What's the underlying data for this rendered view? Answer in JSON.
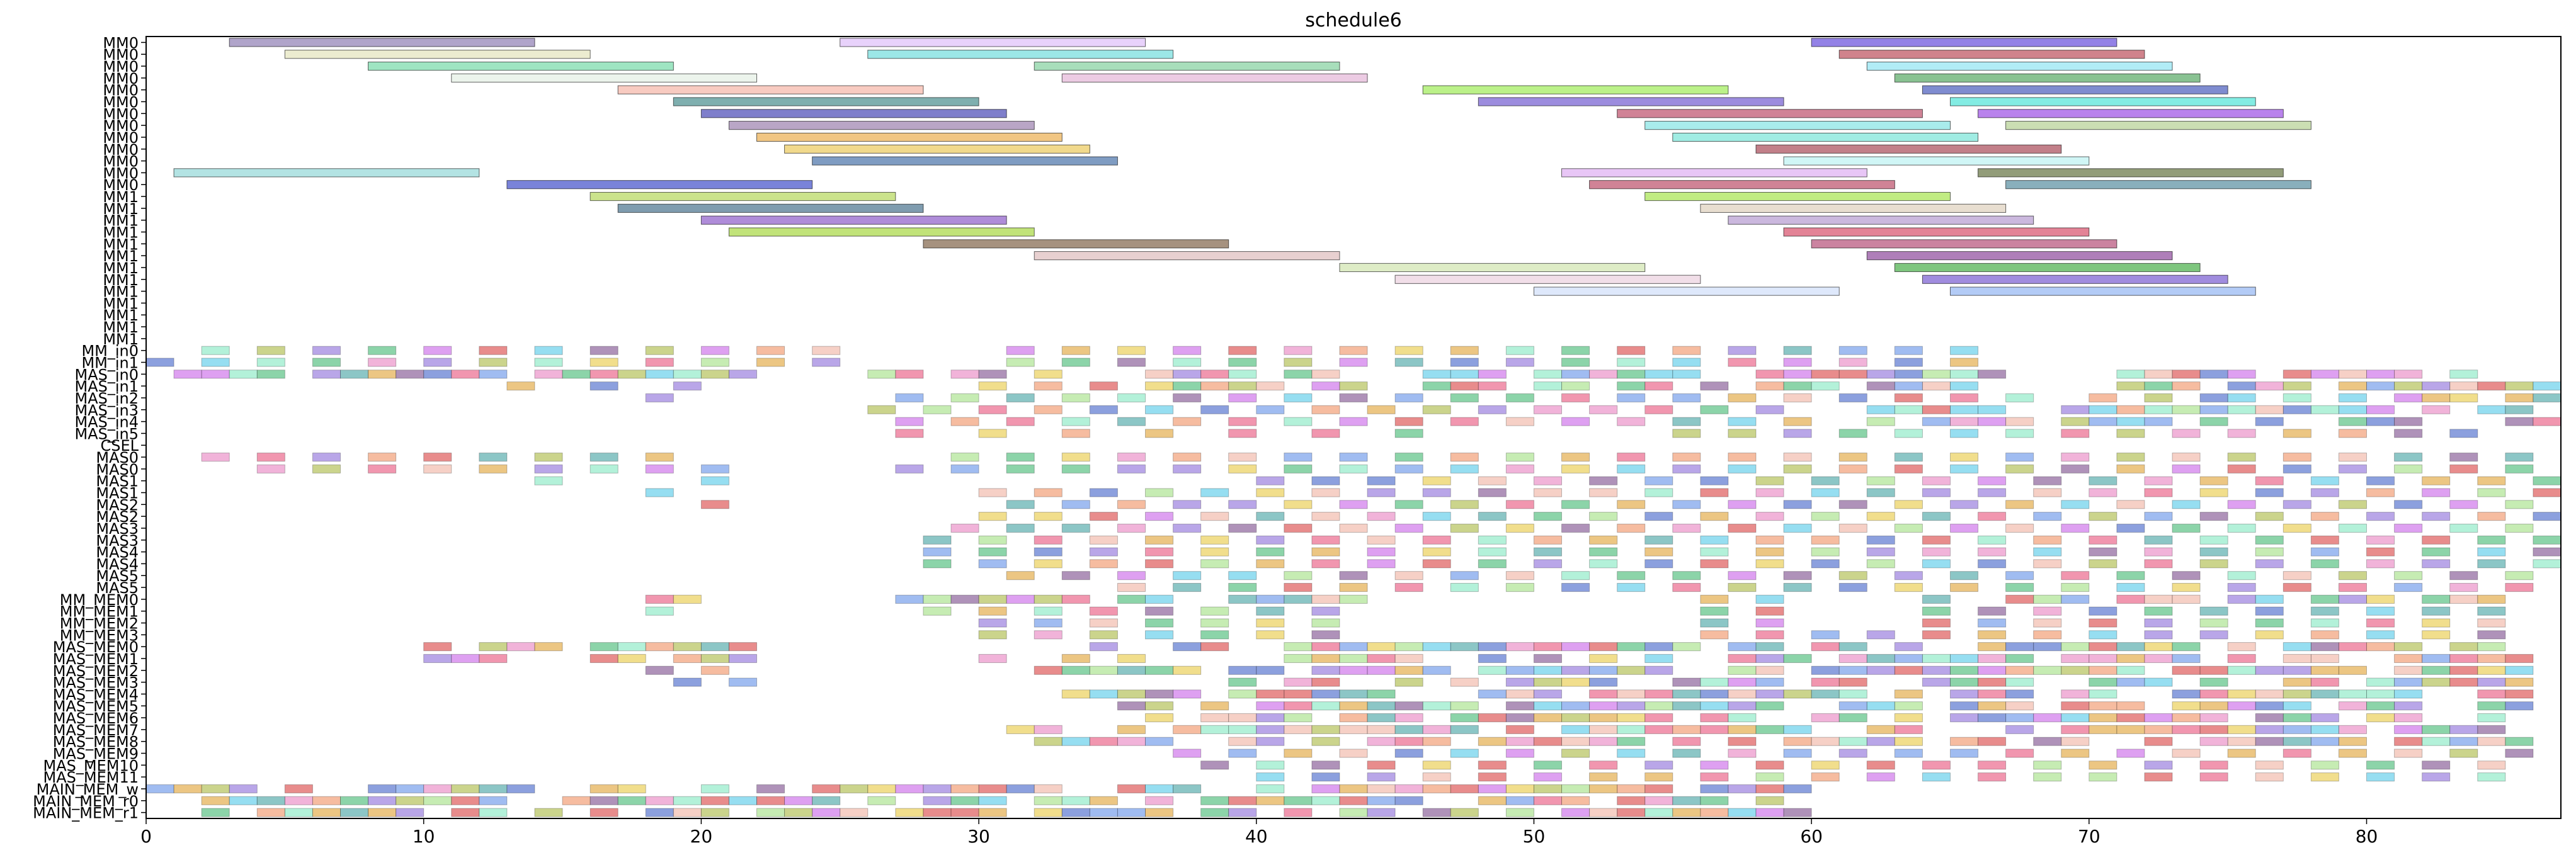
{
  "chart_data": {
    "type": "gantt",
    "title": "schedule6",
    "xlabel": "",
    "ylabel": "",
    "xlim": [
      0,
      87
    ],
    "x_ticks": [
      0,
      10,
      20,
      30,
      40,
      50,
      60,
      70,
      80
    ],
    "grid": false,
    "legend": "none",
    "rows": [
      "MM0",
      "MM0",
      "MM0",
      "MM0",
      "MM0",
      "MM0",
      "MM0",
      "MM0",
      "MM0",
      "MM0",
      "MM0",
      "MM0",
      "MM0",
      "MM1",
      "MM1",
      "MM1",
      "MM1",
      "MM1",
      "MM1",
      "MM1",
      "MM1",
      "MM1",
      "MM1",
      "MM1",
      "MM1",
      "MM1",
      "MM_in0",
      "MM_in1",
      "MAS_in0",
      "MAS_in1",
      "MAS_in2",
      "MAS_in3",
      "MAS_in4",
      "MAS_in5",
      "CSEL",
      "MAS0",
      "MAS0",
      "MAS1",
      "MAS1",
      "MAS2",
      "MAS2",
      "MAS3",
      "MAS3",
      "MAS4",
      "MAS4",
      "MAS5",
      "MAS5",
      "MM_MEM0",
      "MM_MEM1",
      "MM_MEM2",
      "MM_MEM3",
      "MAS_MEM0",
      "MAS_MEM1",
      "MAS_MEM2",
      "MAS_MEM3",
      "MAS_MEM4",
      "MAS_MEM5",
      "MAS_MEM6",
      "MAS_MEM7",
      "MAS_MEM8",
      "MAS_MEM9",
      "MAS_MEM10",
      "MAS_MEM11",
      "MAIN_MEM_w",
      "MAIN_MEM_r0",
      "MAIN_MEM_r1"
    ],
    "tasks": [
      {
        "row": 0,
        "start": 3,
        "end": 14,
        "color": "#7b68a6"
      },
      {
        "row": 0,
        "start": 25,
        "end": 36,
        "color": "#d8b4f8"
      },
      {
        "row": 0,
        "start": 60,
        "end": 71,
        "color": "#4b2fd6"
      },
      {
        "row": 1,
        "start": 5,
        "end": 16,
        "color": "#dfe0b0"
      },
      {
        "row": 1,
        "start": 26,
        "end": 37,
        "color": "#5ad7d7"
      },
      {
        "row": 1,
        "start": 61,
        "end": 72,
        "color": "#b03040"
      },
      {
        "row": 2,
        "start": 8,
        "end": 19,
        "color": "#5ed49a"
      },
      {
        "row": 2,
        "start": 32,
        "end": 43,
        "color": "#6ec88e"
      },
      {
        "row": 2,
        "start": 62,
        "end": 73,
        "color": "#7de0f0"
      },
      {
        "row": 3,
        "start": 11,
        "end": 22,
        "color": "#e0ece0"
      },
      {
        "row": 3,
        "start": 33,
        "end": 44,
        "color": "#e0a8d0"
      },
      {
        "row": 3,
        "start": 63,
        "end": 74,
        "color": "#3a9a4a"
      },
      {
        "row": 4,
        "start": 17,
        "end": 28,
        "color": "#f4a898"
      },
      {
        "row": 4,
        "start": 46,
        "end": 57,
        "color": "#8ee83a"
      },
      {
        "row": 4,
        "start": 64,
        "end": 75,
        "color": "#2a40b0"
      },
      {
        "row": 5,
        "start": 19,
        "end": 30,
        "color": "#2a7a7a"
      },
      {
        "row": 5,
        "start": 48,
        "end": 59,
        "color": "#5a40c8"
      },
      {
        "row": 5,
        "start": 65,
        "end": 76,
        "color": "#30e0d0"
      },
      {
        "row": 6,
        "start": 20,
        "end": 31,
        "color": "#2a2aa8"
      },
      {
        "row": 6,
        "start": 53,
        "end": 64,
        "color": "#b03050"
      },
      {
        "row": 6,
        "start": 66,
        "end": 77,
        "color": "#8a30e0"
      },
      {
        "row": 7,
        "start": 21,
        "end": 32,
        "color": "#8a6aa0"
      },
      {
        "row": 7,
        "start": 54,
        "end": 65,
        "color": "#70e0e0"
      },
      {
        "row": 7,
        "start": 67,
        "end": 78,
        "color": "#a8c880"
      },
      {
        "row": 8,
        "start": 22,
        "end": 33,
        "color": "#e8a030"
      },
      {
        "row": 8,
        "start": 55,
        "end": 66,
        "color": "#60e0d0"
      },
      {
        "row": 9,
        "start": 23,
        "end": 34,
        "color": "#e8c040"
      },
      {
        "row": 9,
        "start": 58,
        "end": 69,
        "color": "#9a2a3a"
      },
      {
        "row": 10,
        "start": 24,
        "end": 35,
        "color": "#2a5a9a"
      },
      {
        "row": 10,
        "start": 59,
        "end": 70,
        "color": "#b0f0f0"
      },
      {
        "row": 11,
        "start": 1,
        "end": 12,
        "color": "#80d0d0"
      },
      {
        "row": 11,
        "start": 51,
        "end": 62,
        "color": "#d8a0f0"
      },
      {
        "row": 11,
        "start": 66,
        "end": 77,
        "color": "#4a5a20"
      },
      {
        "row": 12,
        "start": 13,
        "end": 24,
        "color": "#2030c0"
      },
      {
        "row": 12,
        "start": 52,
        "end": 63,
        "color": "#b03050"
      },
      {
        "row": 12,
        "start": 67,
        "end": 78,
        "color": "#3a7a90"
      },
      {
        "row": 13,
        "start": 16,
        "end": 27,
        "color": "#a8d040"
      },
      {
        "row": 13,
        "start": 54,
        "end": 65,
        "color": "#98e030"
      },
      {
        "row": 14,
        "start": 17,
        "end": 28,
        "color": "#2a5a7a"
      },
      {
        "row": 14,
        "start": 56,
        "end": 67,
        "color": "#d8c8b0"
      },
      {
        "row": 15,
        "start": 20,
        "end": 31,
        "color": "#7a40c0"
      },
      {
        "row": 15,
        "start": 57,
        "end": 68,
        "color": "#a888c8"
      },
      {
        "row": 16,
        "start": 21,
        "end": 32,
        "color": "#98d020"
      },
      {
        "row": 16,
        "start": 59,
        "end": 70,
        "color": "#d03050"
      },
      {
        "row": 17,
        "start": 28,
        "end": 39,
        "color": "#6a4a2a"
      },
      {
        "row": 17,
        "start": 60,
        "end": 71,
        "color": "#a83060"
      },
      {
        "row": 18,
        "start": 32,
        "end": 43,
        "color": "#d8b0b0"
      },
      {
        "row": 18,
        "start": 62,
        "end": 73,
        "color": "#7a2a8a"
      },
      {
        "row": 19,
        "start": 43,
        "end": 54,
        "color": "#c8e0a0"
      },
      {
        "row": 19,
        "start": 63,
        "end": 74,
        "color": "#28a028"
      },
      {
        "row": 20,
        "start": 45,
        "end": 56,
        "color": "#e8c8d8"
      },
      {
        "row": 20,
        "start": 64,
        "end": 75,
        "color": "#6040c8"
      },
      {
        "row": 21,
        "start": 50,
        "end": 61,
        "color": "#c8d8f8"
      },
      {
        "row": 21,
        "start": 65,
        "end": 76,
        "color": "#80a8f0"
      }
    ],
    "dense_rows": [
      {
        "row": 26,
        "range": [
          2,
          26
        ],
        "period": 2
      },
      {
        "row": 27,
        "range": [
          0,
          26
        ],
        "period": 2
      },
      {
        "row": 26,
        "range": [
          31,
          67
        ],
        "period": 2
      },
      {
        "row": 27,
        "range": [
          31,
          67
        ],
        "period": 2
      },
      {
        "row": 28,
        "range": [
          1,
          22
        ],
        "period": 1
      },
      {
        "row": 28,
        "range": [
          26,
          67
        ],
        "period": 1
      },
      {
        "row": 28,
        "range": [
          71,
          84
        ],
        "period": 1
      },
      {
        "row": 29,
        "range": [
          13,
          22
        ],
        "period": 3
      },
      {
        "row": 29,
        "range": [
          30,
          68
        ],
        "period": 1
      },
      {
        "row": 29,
        "range": [
          71,
          87
        ],
        "period": 1
      },
      {
        "row": 30,
        "range": [
          18,
          20
        ],
        "period": 2
      },
      {
        "row": 30,
        "range": [
          27,
          68
        ],
        "period": 2
      },
      {
        "row": 30,
        "range": [
          69,
          87
        ],
        "period": 1
      },
      {
        "row": 31,
        "range": [
          26,
          60
        ],
        "period": 2
      },
      {
        "row": 31,
        "range": [
          62,
          87
        ],
        "period": 1
      },
      {
        "row": 32,
        "range": [
          27,
          60
        ],
        "period": 2
      },
      {
        "row": 32,
        "range": [
          62,
          87
        ],
        "period": 1
      },
      {
        "row": 33,
        "range": [
          27,
          48
        ],
        "period": 3
      },
      {
        "row": 33,
        "range": [
          55,
          85
        ],
        "period": 2
      },
      {
        "row": 35,
        "range": [
          2,
          20
        ],
        "period": 2
      },
      {
        "row": 35,
        "range": [
          29,
          87
        ],
        "period": 2
      },
      {
        "row": 36,
        "range": [
          4,
          22
        ],
        "period": 2
      },
      {
        "row": 36,
        "range": [
          27,
          87
        ],
        "period": 2
      },
      {
        "row": 37,
        "range": [
          14,
          22
        ],
        "period": 6
      },
      {
        "row": 37,
        "range": [
          40,
          87
        ],
        "period": 2
      },
      {
        "row": 38,
        "range": [
          18,
          20
        ],
        "period": 2
      },
      {
        "row": 38,
        "range": [
          30,
          87
        ],
        "period": 2
      },
      {
        "row": 39,
        "range": [
          20,
          22
        ],
        "period": 2
      },
      {
        "row": 39,
        "range": [
          31,
          87
        ],
        "period": 2
      },
      {
        "row": 40,
        "range": [
          30,
          87
        ],
        "period": 2
      },
      {
        "row": 41,
        "range": [
          29,
          87
        ],
        "period": 2
      },
      {
        "row": 42,
        "range": [
          28,
          87
        ],
        "period": 2
      },
      {
        "row": 43,
        "range": [
          28,
          87
        ],
        "period": 2
      },
      {
        "row": 44,
        "range": [
          28,
          87
        ],
        "period": 2
      },
      {
        "row": 45,
        "range": [
          31,
          87
        ],
        "period": 2
      },
      {
        "row": 46,
        "range": [
          35,
          87
        ],
        "period": 2
      },
      {
        "row": 47,
        "range": [
          18,
          20
        ],
        "period": 1
      },
      {
        "row": 47,
        "range": [
          27,
          44
        ],
        "period": 1
      },
      {
        "row": 47,
        "range": [
          56,
          60
        ],
        "period": 2
      },
      {
        "row": 47,
        "range": [
          64,
          86
        ],
        "period": 1
      },
      {
        "row": 48,
        "range": [
          18,
          20
        ],
        "period": 2
      },
      {
        "row": 48,
        "range": [
          28,
          44
        ],
        "period": 2
      },
      {
        "row": 48,
        "range": [
          56,
          60
        ],
        "period": 2
      },
      {
        "row": 48,
        "range": [
          64,
          86
        ],
        "period": 2
      },
      {
        "row": 49,
        "range": [
          30,
          44
        ],
        "period": 2
      },
      {
        "row": 49,
        "range": [
          56,
          60
        ],
        "period": 2
      },
      {
        "row": 49,
        "range": [
          64,
          86
        ],
        "period": 2
      },
      {
        "row": 50,
        "range": [
          30,
          44
        ],
        "period": 2
      },
      {
        "row": 50,
        "range": [
          56,
          86
        ],
        "period": 2
      },
      {
        "row": 51,
        "range": [
          10,
          22
        ],
        "period": 1
      },
      {
        "row": 51,
        "range": [
          30,
          86
        ],
        "period": 1
      },
      {
        "row": 52,
        "range": [
          10,
          22
        ],
        "period": 1
      },
      {
        "row": 52,
        "range": [
          30,
          86
        ],
        "period": 1
      },
      {
        "row": 53,
        "range": [
          18,
          22
        ],
        "period": 2
      },
      {
        "row": 53,
        "range": [
          30,
          86
        ],
        "period": 1
      },
      {
        "row": 54,
        "range": [
          19,
          22
        ],
        "period": 2
      },
      {
        "row": 54,
        "range": [
          37,
          86
        ],
        "period": 1
      },
      {
        "row": 55,
        "range": [
          33,
          86
        ],
        "period": 1
      },
      {
        "row": 56,
        "range": [
          35,
          86
        ],
        "period": 1
      },
      {
        "row": 57,
        "range": [
          35,
          86
        ],
        "period": 1
      },
      {
        "row": 58,
        "range": [
          30,
          86
        ],
        "period": 1
      },
      {
        "row": 59,
        "range": [
          31,
          86
        ],
        "period": 1
      },
      {
        "row": 60,
        "range": [
          37,
          86
        ],
        "period": 2
      },
      {
        "row": 61,
        "range": [
          38,
          86
        ],
        "period": 2
      },
      {
        "row": 62,
        "range": [
          40,
          86
        ],
        "period": 2
      },
      {
        "row": 63,
        "range": [
          0,
          60
        ],
        "period": 1
      },
      {
        "row": 64,
        "range": [
          0,
          60
        ],
        "period": 1
      },
      {
        "row": 65,
        "range": [
          0,
          60
        ],
        "period": 1
      }
    ]
  }
}
